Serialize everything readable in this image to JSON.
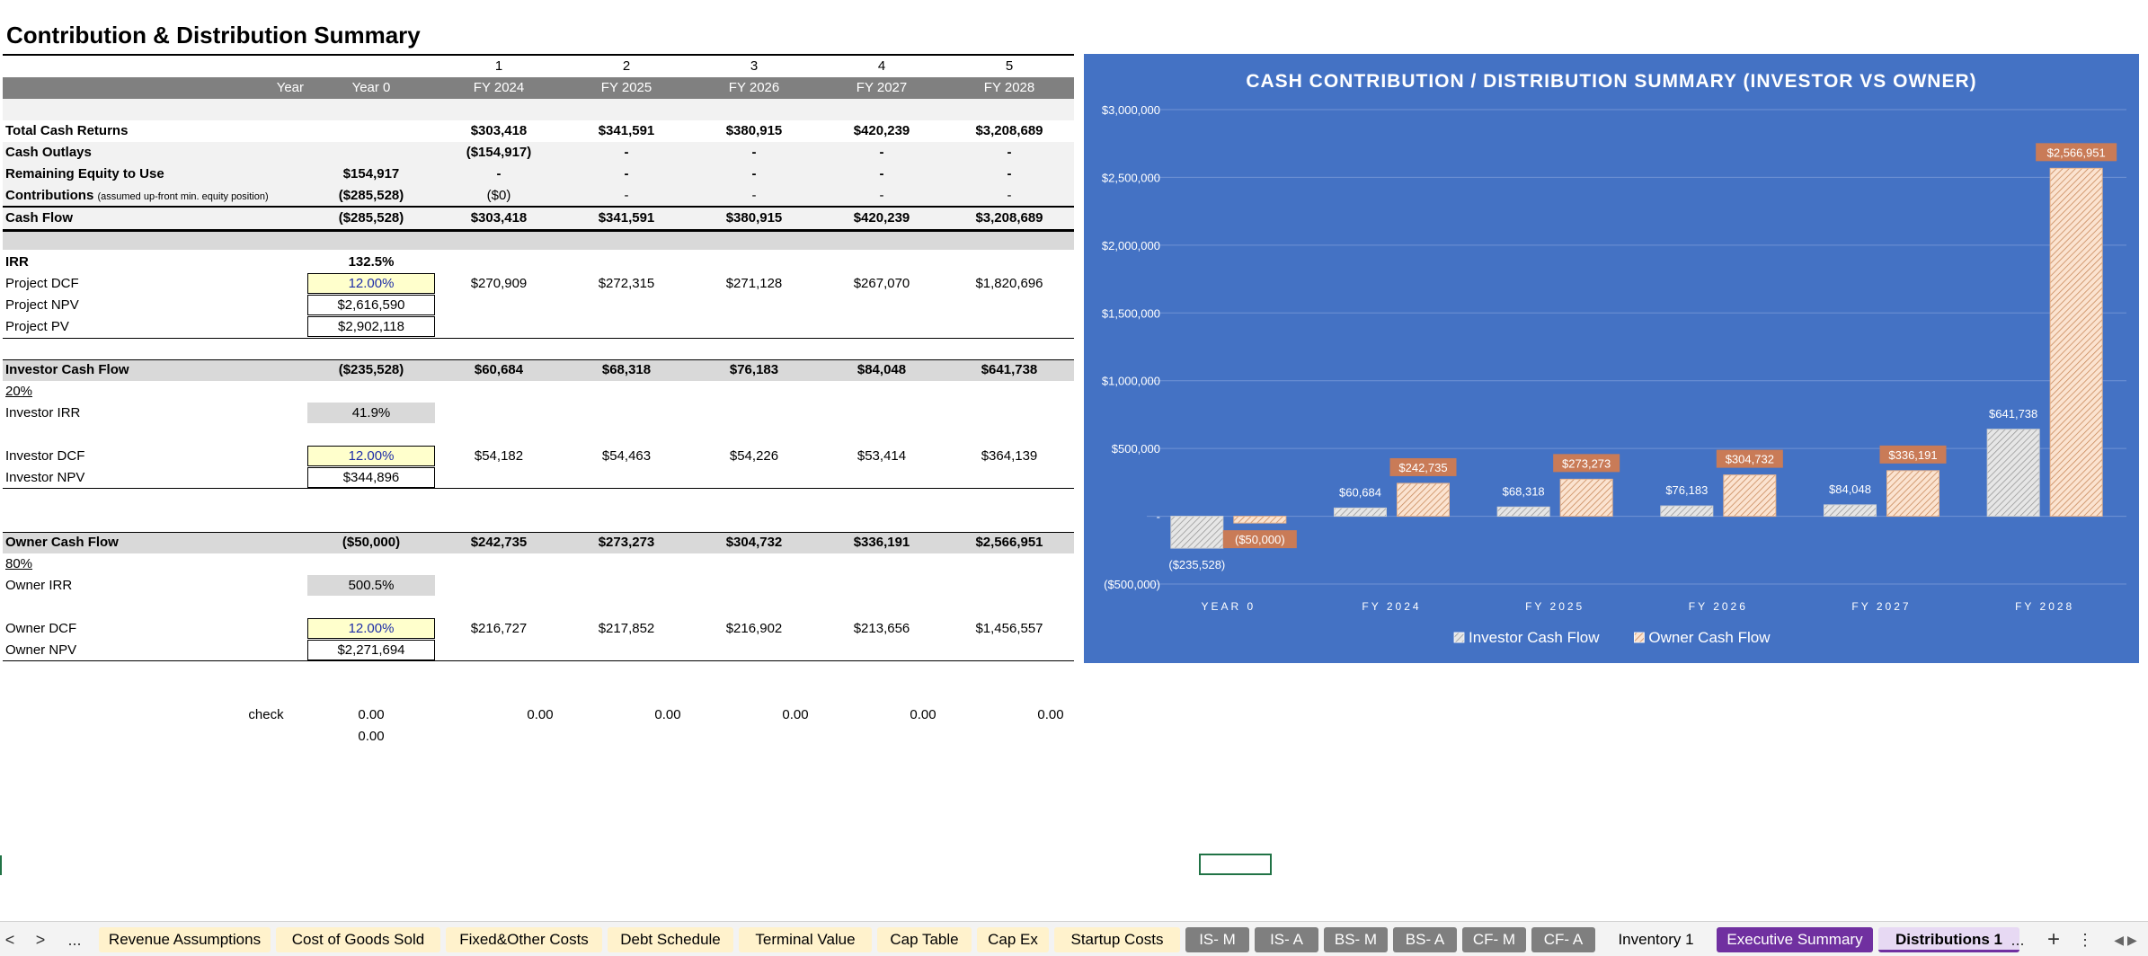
{
  "title": "Contribution & Distribution Summary",
  "header": {
    "numbers": [
      "1",
      "2",
      "3",
      "4",
      "5"
    ],
    "year_label": "Year",
    "year0": "Year 0",
    "years": [
      "FY 2024",
      "FY 2025",
      "FY 2026",
      "FY 2027",
      "FY 2028"
    ]
  },
  "rows": {
    "total_cash_returns": {
      "label": "Total Cash Returns",
      "y0": "",
      "vals": [
        "$303,418",
        "$341,591",
        "$380,915",
        "$420,239",
        "$3,208,689"
      ]
    },
    "cash_outlays": {
      "label": "Cash Outlays",
      "y0": "",
      "vals": [
        "($154,917)",
        "-",
        "-",
        "-",
        "-"
      ]
    },
    "remaining_equity": {
      "label": "Remaining Equity to Use",
      "y0": "$154,917",
      "vals": [
        "-",
        "-",
        "-",
        "-",
        "-"
      ]
    },
    "contributions": {
      "label": "Contributions",
      "note": "(assumed up-front min. equity position)",
      "y0": "($285,528)",
      "vals": [
        "($0)",
        "-",
        "-",
        "-",
        "-"
      ]
    },
    "cash_flow": {
      "label": "Cash Flow",
      "y0": "($285,528)",
      "vals": [
        "$303,418",
        "$341,591",
        "$380,915",
        "$420,239",
        "$3,208,689"
      ]
    }
  },
  "project": {
    "irr_label": "IRR",
    "irr": "132.5%",
    "dcf_label": "Project DCF",
    "dcf_rate": "12.00%",
    "dcf_vals": [
      "$270,909",
      "$272,315",
      "$271,128",
      "$267,070",
      "$1,820,696"
    ],
    "npv_label": "Project NPV",
    "npv": "$2,616,590",
    "pv_label": "Project PV",
    "pv": "$2,902,118"
  },
  "investor": {
    "cf_label": "Investor Cash Flow",
    "y0": "($235,528)",
    "vals": [
      "$60,684",
      "$68,318",
      "$76,183",
      "$84,048",
      "$641,738"
    ],
    "share": "20%",
    "irr_label": "Investor IRR",
    "irr": "41.9%",
    "dcf_label": "Investor DCF",
    "dcf_rate": "12.00%",
    "dcf_vals": [
      "$54,182",
      "$54,463",
      "$54,226",
      "$53,414",
      "$364,139"
    ],
    "npv_label": "Investor NPV",
    "npv": "$344,896"
  },
  "owner": {
    "cf_label": "Owner Cash Flow",
    "y0": "($50,000)",
    "vals": [
      "$242,735",
      "$273,273",
      "$304,732",
      "$336,191",
      "$2,566,951"
    ],
    "share": "80%",
    "irr_label": "Owner IRR",
    "irr": "500.5%",
    "dcf_label": "Owner DCF",
    "dcf_rate": "12.00%",
    "dcf_vals": [
      "$216,727",
      "$217,852",
      "$216,902",
      "$213,656",
      "$1,456,557"
    ],
    "npv_label": "Owner NPV",
    "npv": "$2,271,694"
  },
  "check": {
    "label": "check",
    "y0": "0.00",
    "y0_second": "0.00",
    "vals": [
      "0.00",
      "0.00",
      "0.00",
      "0.00",
      "0.00"
    ]
  },
  "chart_data": {
    "type": "bar",
    "title": "CASH CONTRIBUTION / DISTRIBUTION SUMMARY (INVESTOR VS OWNER)",
    "categories": [
      "YEAR 0",
      "FY 2024",
      "FY 2025",
      "FY 2026",
      "FY 2027",
      "FY 2028"
    ],
    "series": [
      {
        "name": "Investor Cash Flow",
        "values": [
          -235528,
          60684,
          68318,
          76183,
          84048,
          641738
        ],
        "labels": [
          "($235,528)",
          "$60,684",
          "$68,318",
          "$76,183",
          "$84,048",
          "$641,738"
        ],
        "color": "#f2f2f2"
      },
      {
        "name": "Owner Cash Flow",
        "values": [
          -50000,
          242735,
          273273,
          304732,
          336191,
          2566951
        ],
        "labels": [
          "($50,000)",
          "$242,735",
          "$273,273",
          "$304,732",
          "$336,191",
          "$2,566,951"
        ],
        "color": "#f8cbad"
      }
    ],
    "yticks": [
      -500000,
      0,
      500000,
      1000000,
      1500000,
      2000000,
      2500000,
      3000000
    ],
    "ytick_labels": [
      "($500,000)",
      "-",
      "$500,000",
      "$1,000,000",
      "$1,500,000",
      "$2,000,000",
      "$2,500,000",
      "$3,000,000"
    ],
    "ylim": [
      -500000,
      3000000
    ],
    "grid": true,
    "legend_position": "bottom",
    "background": "#4472c4",
    "owner_label_bg": "#c97b57"
  },
  "tabs": {
    "nav_prev": "<",
    "nav_next": ">",
    "ellipsis": "...",
    "items": [
      {
        "label": "Revenue Assumptions",
        "kind": "yellow"
      },
      {
        "label": "Cost of Goods Sold",
        "kind": "yellow"
      },
      {
        "label": "Fixed&Other Costs",
        "kind": "yellow"
      },
      {
        "label": "Debt Schedule",
        "kind": "yellow"
      },
      {
        "label": "Terminal Value",
        "kind": "yellow"
      },
      {
        "label": "Cap Table",
        "kind": "yellow"
      },
      {
        "label": "Cap Ex",
        "kind": "yellow"
      },
      {
        "label": "Startup Costs",
        "kind": "yellow"
      },
      {
        "label": "IS- M",
        "kind": "grey"
      },
      {
        "label": "IS- A",
        "kind": "grey"
      },
      {
        "label": "BS- M",
        "kind": "grey"
      },
      {
        "label": "BS- A",
        "kind": "grey"
      },
      {
        "label": "CF- M",
        "kind": "grey"
      },
      {
        "label": "CF- A",
        "kind": "grey"
      },
      {
        "label": "Inventory 1",
        "kind": "plain"
      },
      {
        "label": "Executive Summary",
        "kind": "purple"
      },
      {
        "label": "Distributions 1",
        "kind": "active"
      }
    ],
    "more": "...",
    "add": "+",
    "options": "⋮"
  }
}
